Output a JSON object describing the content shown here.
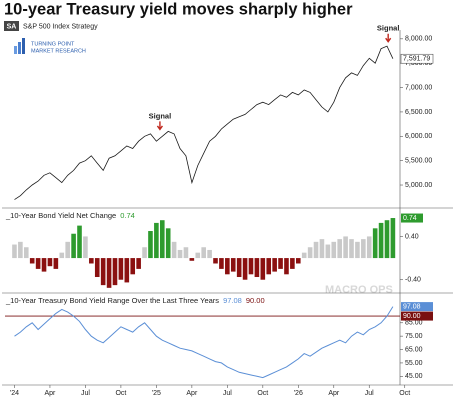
{
  "header": {
    "title": "10-year Treasury yield moves sharply higher",
    "badge": "SA",
    "subtitle": "S&P 500 Index Strategy",
    "logo": [
      "TURNING POINT",
      "MARKET RESEARCH"
    ],
    "watermark": "MACRO OPS"
  },
  "chart_data": [
    {
      "type": "line",
      "color": "#1a1a1a",
      "last_label": "7,591.79",
      "x": [
        0,
        0.5,
        1,
        1.5,
        2,
        2.5,
        3,
        3.5,
        4,
        4.5,
        5,
        5.5,
        6,
        6.5,
        7,
        7.5,
        8,
        8.5,
        9,
        9.5,
        10,
        10.5,
        11,
        11.5,
        12,
        12.5,
        13,
        13.5,
        14,
        14.5,
        15,
        15.5,
        16,
        16.5,
        17,
        17.5,
        18,
        18.5,
        19,
        19.5,
        20,
        20.5,
        21,
        21.5,
        22,
        22.5,
        23,
        23.5,
        24,
        24.5,
        25,
        25.5,
        26,
        26.5,
        27,
        27.5,
        28,
        28.5,
        29,
        29.5,
        30,
        30.5,
        31,
        31.5,
        32
      ],
      "values": [
        4700,
        4780,
        4900,
        5000,
        5080,
        5200,
        5250,
        5150,
        5050,
        5200,
        5300,
        5450,
        5500,
        5600,
        5450,
        5300,
        5550,
        5600,
        5700,
        5800,
        5750,
        5900,
        6000,
        6050,
        5900,
        6000,
        6100,
        6050,
        5750,
        5600,
        5050,
        5400,
        5650,
        5900,
        6000,
        6150,
        6250,
        6350,
        6400,
        6450,
        6550,
        6650,
        6700,
        6650,
        6750,
        6850,
        6800,
        6900,
        6850,
        6950,
        6900,
        6750,
        6600,
        6500,
        6700,
        7000,
        7200,
        7300,
        7250,
        7450,
        7600,
        7500,
        7800,
        7850,
        7591.79
      ],
      "xlim": [
        -0.8,
        32.6
      ],
      "ylim": [
        4590,
        8140
      ],
      "yticks": [
        {
          "value": 5000,
          "label": "5,000.00"
        },
        {
          "value": 5500,
          "label": "5,500.00"
        },
        {
          "value": 6000,
          "label": "6,000.00"
        },
        {
          "value": 6500,
          "label": "6,500.00"
        },
        {
          "value": 7000,
          "label": "7,000.00"
        },
        {
          "value": 7500,
          "label": "7,500.00"
        },
        {
          "value": 8000,
          "label": "8,000.00"
        }
      ],
      "annotations": [
        {
          "text": "Signal",
          "x": 12.3,
          "value": 6100,
          "color": "#c0281e"
        },
        {
          "text": "Signal",
          "x": 31.6,
          "value": 7900,
          "color": "#c0281e"
        }
      ]
    },
    {
      "type": "bar",
      "title": "_10-Year Bond Yield Net Change",
      "last_label": "0.74",
      "x": [
        0,
        0.5,
        1,
        1.5,
        2,
        2.5,
        3,
        3.5,
        4,
        4.5,
        5,
        5.5,
        6,
        6.5,
        7,
        7.5,
        8,
        8.5,
        9,
        9.5,
        10,
        10.5,
        11,
        11.5,
        12,
        12.5,
        13,
        13.5,
        14,
        14.5,
        15,
        15.5,
        16,
        16.5,
        17,
        17.5,
        18,
        18.5,
        19,
        19.5,
        20,
        20.5,
        21,
        21.5,
        22,
        22.5,
        23,
        23.5,
        24,
        24.5,
        25,
        25.5,
        26,
        26.5,
        27,
        27.5,
        28,
        28.5,
        29,
        29.5,
        30,
        30.5,
        31,
        31.5,
        32
      ],
      "values": [
        0.25,
        0.3,
        0.2,
        -0.1,
        -0.2,
        -0.25,
        -0.15,
        -0.2,
        0.1,
        0.3,
        0.45,
        0.6,
        0.4,
        -0.1,
        -0.35,
        -0.5,
        -0.55,
        -0.5,
        -0.4,
        -0.45,
        -0.3,
        -0.2,
        0.2,
        0.5,
        0.65,
        0.7,
        0.55,
        0.3,
        0.15,
        0.2,
        -0.05,
        0.1,
        0.2,
        0.15,
        -0.1,
        -0.2,
        -0.3,
        -0.25,
        -0.35,
        -0.4,
        -0.3,
        -0.35,
        -0.4,
        -0.3,
        -0.25,
        -0.2,
        -0.3,
        -0.2,
        -0.1,
        0.1,
        0.2,
        0.3,
        0.35,
        0.25,
        0.3,
        0.35,
        0.4,
        0.35,
        0.3,
        0.35,
        0.4,
        0.55,
        0.65,
        0.7,
        0.74
      ],
      "colors": {
        "positive": "#c9c9c9",
        "negative": "#8b1010",
        "signal": "#2e9b2e"
      },
      "signal_threshold": 0.45,
      "xlim": [
        -0.8,
        32.6
      ],
      "ylim": [
        -0.59,
        0.87
      ],
      "yticks": [
        {
          "value": 0.4,
          "label": "0.40"
        },
        {
          "value": -0.4,
          "label": "-0.40"
        }
      ]
    },
    {
      "type": "line",
      "title": "_10-Year Treasury Bond Yield Range Over the Last Three Years",
      "color": "#5b8fd6",
      "last_label": "97.08",
      "reference_line": {
        "value": 90,
        "label": "90.00",
        "color": "#7a1010"
      },
      "x": [
        0,
        0.5,
        1,
        1.5,
        2,
        2.5,
        3,
        3.5,
        4,
        4.5,
        5,
        5.5,
        6,
        6.5,
        7,
        7.5,
        8,
        8.5,
        9,
        9.5,
        10,
        10.5,
        11,
        11.5,
        12,
        12.5,
        13,
        13.5,
        14,
        14.5,
        15,
        15.5,
        16,
        16.5,
        17,
        17.5,
        18,
        18.5,
        19,
        19.5,
        20,
        20.5,
        21,
        21.5,
        22,
        22.5,
        23,
        23.5,
        24,
        24.5,
        25,
        25.5,
        26,
        26.5,
        27,
        27.5,
        28,
        28.5,
        29,
        29.5,
        30,
        30.5,
        31,
        31.5,
        32
      ],
      "values": [
        75,
        78,
        82,
        85,
        80,
        84,
        88,
        92,
        95,
        93,
        90,
        86,
        80,
        75,
        72,
        70,
        74,
        78,
        82,
        80,
        78,
        82,
        85,
        80,
        75,
        72,
        70,
        68,
        66,
        65,
        64,
        62,
        60,
        58,
        56,
        55,
        52,
        50,
        48,
        47,
        46,
        45,
        44,
        46,
        48,
        50,
        52,
        55,
        58,
        62,
        60,
        63,
        66,
        68,
        70,
        72,
        70,
        75,
        78,
        76,
        80,
        82,
        85,
        90,
        97.08
      ],
      "xlim": [
        -0.8,
        32.6
      ],
      "ylim": [
        40,
        105
      ],
      "yticks": [
        {
          "value": 85,
          "label": "85.00"
        },
        {
          "value": 75,
          "label": "75.00"
        },
        {
          "value": 65,
          "label": "65.00"
        },
        {
          "value": 55,
          "label": "55.00"
        },
        {
          "value": 45,
          "label": "45.00"
        }
      ],
      "xticks": [
        {
          "value": 0,
          "label": "'24"
        },
        {
          "value": 3,
          "label": "Apr"
        },
        {
          "value": 6,
          "label": "Jul"
        },
        {
          "value": 9,
          "label": "Oct"
        },
        {
          "value": 12,
          "label": "'25"
        },
        {
          "value": 15,
          "label": "Apr"
        },
        {
          "value": 18,
          "label": "Jul"
        },
        {
          "value": 21,
          "label": "Oct"
        },
        {
          "value": 24,
          "label": "'26"
        },
        {
          "value": 27,
          "label": "Apr"
        },
        {
          "value": 30,
          "label": "Jul"
        },
        {
          "value": 33,
          "label": "Oct"
        }
      ]
    }
  ]
}
